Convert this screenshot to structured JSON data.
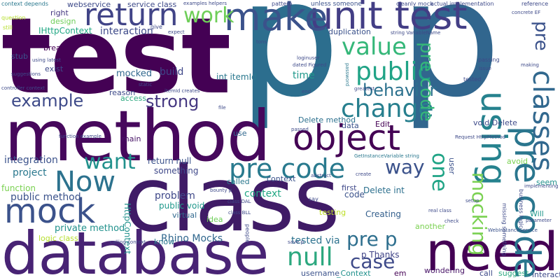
{
  "words": [
    {
      "text": "test",
      "color": "#440154"
    },
    {
      "text": "p",
      "color": "#2c6e8e"
    },
    {
      "text": "p",
      "color": "#31668e"
    },
    {
      "text": "method",
      "color": "#46085c"
    },
    {
      "text": "class",
      "color": "#3f1b66"
    },
    {
      "text": "database",
      "color": "#482374"
    },
    {
      "text": "need",
      "color": "#440154"
    },
    {
      "text": "unit test",
      "color": "#433e85"
    },
    {
      "text": "make",
      "color": "#3b528b"
    },
    {
      "text": "return",
      "color": "#414487"
    },
    {
      "text": "object",
      "color": "#440154"
    },
    {
      "text": "mock",
      "color": "#3b528b"
    },
    {
      "text": "Now",
      "color": "#2c728e"
    },
    {
      "text": "using",
      "color": "#26828e"
    },
    {
      "text": "pre code",
      "color": "#2a768e"
    },
    {
      "text": "pre code",
      "color": "#297a8e"
    },
    {
      "text": "classes",
      "color": "#31688e"
    },
    {
      "text": "change",
      "color": "#277f8e"
    },
    {
      "text": "public",
      "color": "#20a386"
    },
    {
      "text": "value",
      "color": "#35b779"
    },
    {
      "text": "work",
      "color": "#6ece58"
    },
    {
      "text": "want",
      "color": "#21918c"
    },
    {
      "text": "behavior",
      "color": "#2c718e"
    },
    {
      "text": "example",
      "color": "#3e4a89"
    },
    {
      "text": "strong",
      "color": "#453781"
    },
    {
      "text": "way",
      "color": "#3b528b"
    },
    {
      "text": "one",
      "color": "#20a486"
    },
    {
      "text": "mocking",
      "color": "#7ad151"
    },
    {
      "text": "pre p",
      "color": "#2e6f8e"
    },
    {
      "text": "null",
      "color": "#2ca87f"
    },
    {
      "text": "case",
      "color": "#3e4a89"
    },
    {
      "text": "pre code",
      "color": "#35b779"
    },
    {
      "text": "pre",
      "color": "#3b528b"
    },
    {
      "text": "interaction",
      "color": "#3e4a89"
    },
    {
      "text": "IHttpContext",
      "color": "#22a884"
    },
    {
      "text": "integration",
      "color": "#3b528b"
    },
    {
      "text": "project",
      "color": "#2a788e"
    },
    {
      "text": "private method",
      "color": "#21918c"
    },
    {
      "text": "public method",
      "color": "#3b528b"
    },
    {
      "text": "function",
      "color": "#7ad151"
    },
    {
      "text": "logic class",
      "color": "#b5de2b"
    },
    {
      "text": "Rhino Mocks",
      "color": "#31688e"
    },
    {
      "text": "problem",
      "color": "#3f4889"
    },
    {
      "text": "public void",
      "color": "#1f988b"
    },
    {
      "text": "context",
      "color": "#22a884"
    },
    {
      "text": "mocked",
      "color": "#31688e"
    },
    {
      "text": "tested via",
      "color": "#2c728e"
    },
    {
      "text": "p Thanks",
      "color": "#414487"
    },
    {
      "text": "Creating",
      "color": "#35608d"
    },
    {
      "text": "Delete int",
      "color": "#2d708e"
    },
    {
      "text": "Delete method",
      "color": "#2d708e"
    },
    {
      "text": "void Delete",
      "color": "#3e4a89"
    },
    {
      "text": "Edit",
      "color": "#440154"
    },
    {
      "text": "data",
      "color": "#3b528b"
    },
    {
      "text": "time",
      "color": "#1f988b"
    },
    {
      "text": "build",
      "color": "#3f4889"
    },
    {
      "text": "main",
      "color": "#481467"
    },
    {
      "text": "something",
      "color": "#3f4889"
    },
    {
      "text": "return null",
      "color": "#3b528b"
    },
    {
      "text": "int itemId",
      "color": "#2a788e"
    },
    {
      "text": "duplication",
      "color": "#3b528b"
    },
    {
      "text": "webservice",
      "color": "#3e4a89"
    },
    {
      "text": "service class",
      "color": "#3e4a89"
    },
    {
      "text": "right",
      "color": "#453781"
    },
    {
      "text": "design",
      "color": "#6ece58"
    },
    {
      "text": "break",
      "color": "#440154"
    },
    {
      "text": "exist",
      "color": "#3e4a89"
    },
    {
      "text": "reason",
      "color": "#3e4a89"
    },
    {
      "text": "access",
      "color": "#2ca87f"
    },
    {
      "text": "virtual",
      "color": "#31688e"
    },
    {
      "text": "called",
      "color": "#2a788e"
    },
    {
      "text": "code",
      "color": "#3b528b"
    },
    {
      "text": "use",
      "color": "#31688e"
    },
    {
      "text": "user",
      "color": "#3b528b"
    },
    {
      "text": "avoid",
      "color": "#7ad151"
    },
    {
      "text": "seem",
      "color": "#21918c"
    },
    {
      "text": "Will",
      "color": "#1f988b"
    },
    {
      "text": "call",
      "color": "#3e4a89"
    },
    {
      "text": "suggest",
      "color": "#2ca87f"
    },
    {
      "text": "interact",
      "color": "#3e4a89"
    },
    {
      "text": "wondering",
      "color": "#481467"
    },
    {
      "text": "em",
      "color": "#440154"
    },
    {
      "text": "username",
      "color": "#3b528b"
    },
    {
      "text": "_Context",
      "color": "#21918c"
    },
    {
      "text": "another",
      "color": "#7ad151"
    },
    {
      "text": "testing",
      "color": "#bddf26"
    },
    {
      "text": "first",
      "color": "#3f4889"
    },
    {
      "text": "context",
      "color": "#3b528b"
    },
    {
      "text": "idea",
      "color": "#6ece58"
    },
    {
      "text": "know",
      "color": "#2a788e"
    },
    {
      "text": "HttpContext",
      "color": "#21918c"
    },
    {
      "text": "stub",
      "color": "#3b528b"
    },
    {
      "text": "question",
      "color": "#b5de2b"
    },
    {
      "text": "still",
      "color": "#b5de2b"
    },
    {
      "text": "context depends",
      "color": "#2a788e"
    },
    {
      "text": "give",
      "color": "#3e4a89"
    },
    {
      "text": "unless someone",
      "color": "#3b528b"
    },
    {
      "text": "pattern",
      "color": "#3e4a89"
    },
    {
      "text": "cleanly mock",
      "color": "#3e4a89"
    },
    {
      "text": "actual implementation",
      "color": "#3e4a89"
    },
    {
      "text": "reference",
      "color": "#3e4a89"
    },
    {
      "text": "string VariableName",
      "color": "#3e4a89"
    },
    {
      "text": "GetInstanceVariable string",
      "color": "#2a788e"
    },
    {
      "text": "Request HttpMethod",
      "color": "#3e4a89"
    },
    {
      "text": "WebInstanceService",
      "color": "#3b528b"
    },
    {
      "text": "passing",
      "color": "#3e4a89"
    },
    {
      "text": "issue",
      "color": "#3e4a89"
    },
    {
      "text": "tested",
      "color": "#3e4a89"
    },
    {
      "text": "making",
      "color": "#3e4a89"
    },
    {
      "text": "implementing",
      "color": "#3e4a89"
    },
    {
      "text": "parameter",
      "color": "#3e4a89"
    },
    {
      "text": "missing something",
      "color": "#3e4a89"
    },
    {
      "text": "business logic",
      "color": "#3e4a89"
    },
    {
      "text": "greatest",
      "color": "#3e4a89"
    },
    {
      "text": "password",
      "color": "#2a788e"
    },
    {
      "text": "dated Figured",
      "color": "#3e4a89"
    },
    {
      "text": "loginuser",
      "color": "#3e4a89"
    },
    {
      "text": "itemId creates",
      "color": "#3e4a89"
    },
    {
      "text": "controller context",
      "color": "#3e4a89"
    },
    {
      "text": "examples helpers",
      "color": "#3e4a89"
    },
    {
      "text": "concrete EF",
      "color": "#3e4a89"
    },
    {
      "text": "setup",
      "color": "#3e4a89"
    },
    {
      "text": "real class",
      "color": "#3e4a89"
    },
    {
      "text": "check",
      "color": "#3e4a89"
    },
    {
      "text": "say",
      "color": "#3e4a89"
    },
    {
      "text": "bounty p",
      "color": "#3e4a89"
    },
    {
      "text": "static",
      "color": "#3e4a89"
    },
    {
      "text": "suggestions",
      "color": "#3e4a89"
    },
    {
      "text": "using latest",
      "color": "#3e4a89"
    },
    {
      "text": "calling context",
      "color": "#3e4a89"
    },
    {
      "text": "save p",
      "color": "#3e4a89"
    },
    {
      "text": "people",
      "color": "#3e4a89"
    },
    {
      "text": "class DAL",
      "color": "#3e4a89"
    },
    {
      "text": "class BLL",
      "color": "#3e4a89"
    },
    {
      "text": "function example",
      "color": "#3e4a89"
    },
    {
      "text": "file",
      "color": "#3e4a89"
    },
    {
      "text": "end",
      "color": "#3e4a89"
    },
    {
      "text": "passed",
      "color": "#3e4a89"
    },
    {
      "text": "create",
      "color": "#3e4a89"
    },
    {
      "text": "abstract",
      "color": "#3e4a89"
    },
    {
      "text": "tons",
      "color": "#3e4a89"
    },
    {
      "text": "expect",
      "color": "#3e4a89"
    }
  ]
}
